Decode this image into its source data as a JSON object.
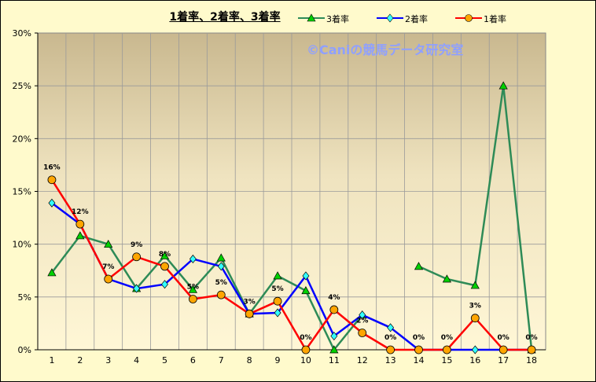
{
  "chart_data": {
    "type": "line",
    "title": "1着率、2着率、3着率",
    "watermark": "©Caniの競馬データ研究室",
    "categories": [
      "1",
      "2",
      "3",
      "4",
      "5",
      "6",
      "7",
      "8",
      "9",
      "10",
      "11",
      "12",
      "13",
      "14",
      "15",
      "16",
      "17",
      "18"
    ],
    "ylim": [
      0,
      30
    ],
    "y_ticks": [
      "0%",
      "5%",
      "10%",
      "15%",
      "20%",
      "25%",
      "30%"
    ],
    "grid": true,
    "legend_position": "top-right",
    "series": [
      {
        "name": "3着率",
        "color": "#2e8b57",
        "marker": "triangle",
        "values": [
          7.3,
          10.8,
          10.0,
          5.8,
          8.9,
          5.7,
          8.7,
          3.4,
          7.0,
          5.6,
          0.0,
          3.3,
          null,
          7.9,
          6.7,
          6.1,
          25.0,
          0.0
        ]
      },
      {
        "name": "2着率",
        "color": "#0000ff",
        "marker": "diamond",
        "values": [
          13.9,
          11.9,
          6.7,
          5.8,
          6.2,
          8.6,
          7.9,
          3.4,
          3.5,
          7.0,
          1.3,
          3.3,
          2.1,
          0.0,
          0.0,
          0.0,
          0.0,
          0.0
        ]
      },
      {
        "name": "1着率",
        "color": "#ff0000",
        "marker": "circle",
        "values": [
          16.1,
          11.9,
          6.7,
          8.8,
          7.9,
          4.8,
          5.2,
          3.4,
          4.6,
          0.0,
          3.8,
          1.6,
          0.0,
          0.0,
          0.0,
          3.0,
          0.0,
          0.0
        ],
        "data_labels": [
          "16%",
          "12%",
          "7%",
          "9%",
          "8%",
          "5%",
          "5%",
          "3%",
          "5%",
          "0%",
          "4%",
          "2%",
          "0%",
          "0%",
          "0%",
          "3%",
          "0%",
          "0%"
        ]
      }
    ]
  }
}
